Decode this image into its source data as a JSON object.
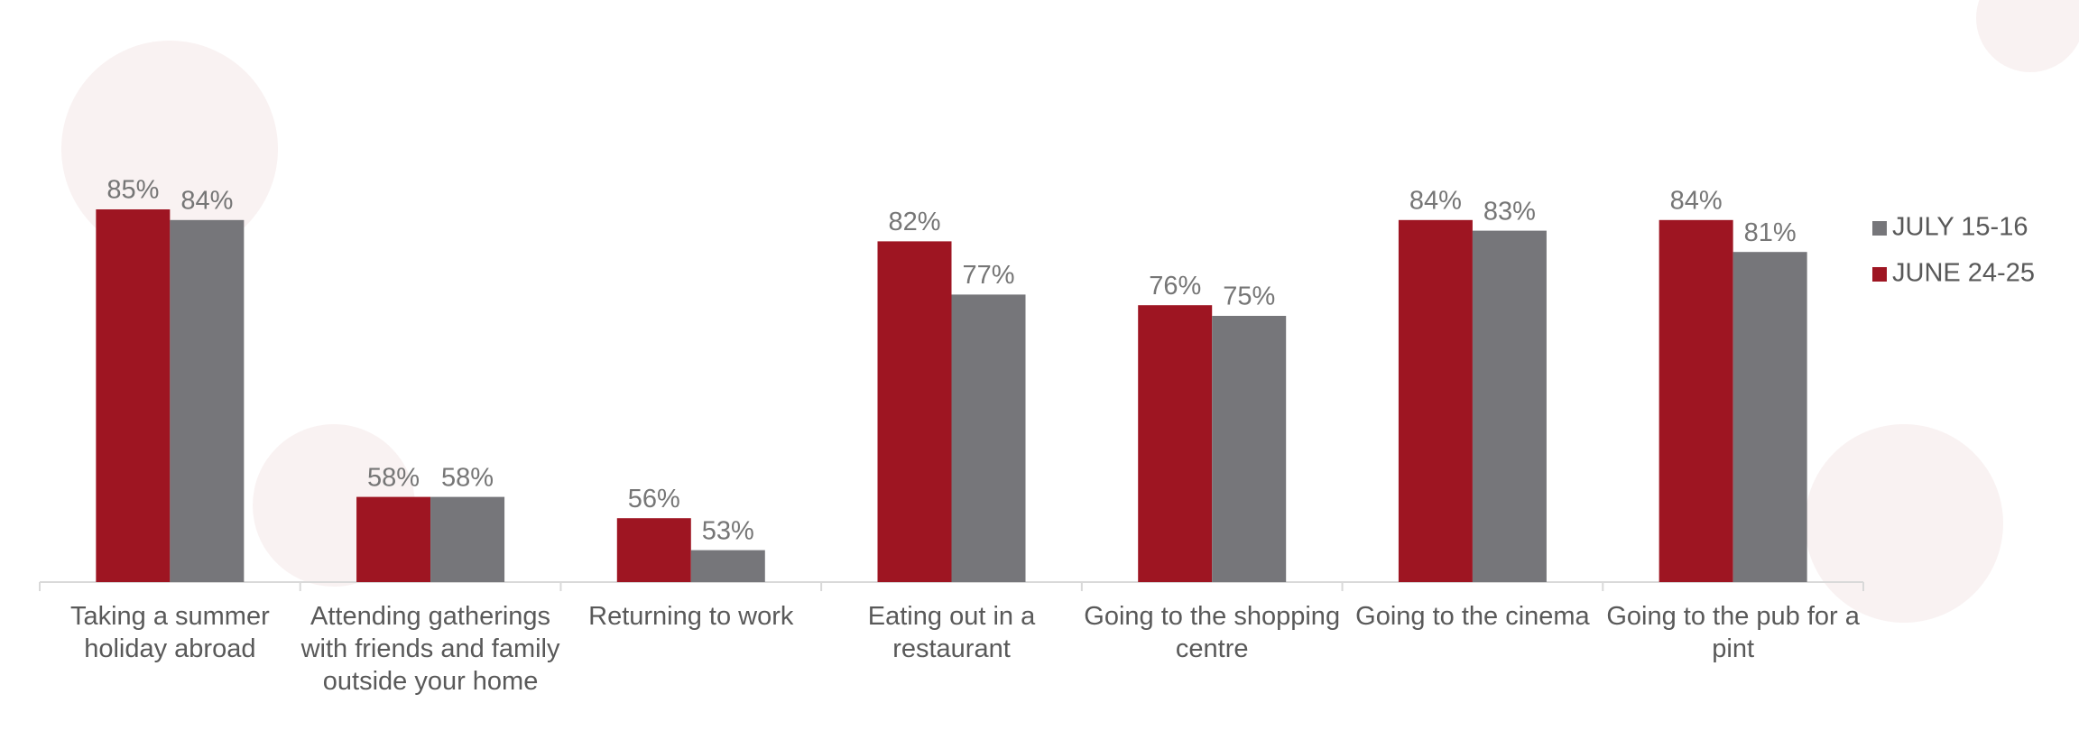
{
  "chart_data": {
    "type": "bar",
    "categories": [
      "Taking a summer holiday abroad",
      "Attending gatherings with friends and family outside your home",
      "Returning to work",
      "Eating out in a restaurant",
      "Going to the shopping centre",
      "Going to the cinema",
      "Going to the pub for a pint"
    ],
    "series": [
      {
        "name": "JUNE 24-25",
        "color": "#9e1522",
        "values": [
          85,
          58,
          56,
          82,
          76,
          84,
          84
        ],
        "value_labels": [
          "85%",
          "58%",
          "56%",
          "82%",
          "76%",
          "84%",
          "84%"
        ]
      },
      {
        "name": "JULY 15-16",
        "color": "#76767a",
        "values": [
          84,
          58,
          53,
          77,
          75,
          83,
          81
        ],
        "value_labels": [
          "84%",
          "58%",
          "53%",
          "77%",
          "75%",
          "83%",
          "81%"
        ]
      }
    ],
    "ylim": [
      50,
      100
    ],
    "legend": "right"
  }
}
